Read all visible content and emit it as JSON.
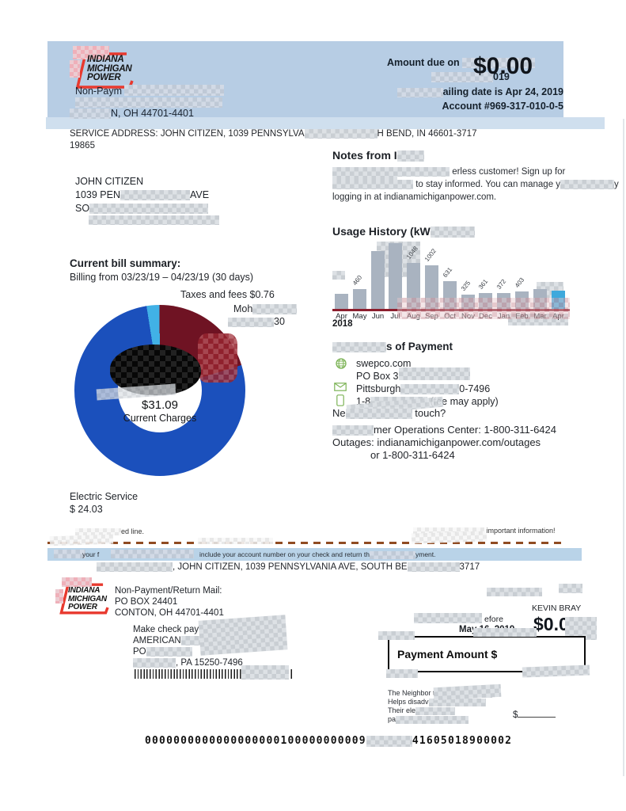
{
  "colors": {
    "header_bg": "#b7cde4",
    "header_strip": "#cfdfee",
    "logo_red": "#e8392e",
    "donut_blue": "#1b50bc",
    "donut_maroon": "#6f1323",
    "donut_lightblue": "#41b1e6",
    "bar_gray": "#a9b3c0",
    "bar_highlight": "#3fa9dc",
    "axis_red": "#8c1f2e",
    "dash_brown": "#8f4b22",
    "strip_blue": "#b9d3e8",
    "icon_green": "#7cb356"
  },
  "logo": {
    "l1": "INDIANA",
    "l2": "MICHIGAN",
    "l3": "POWER"
  },
  "header": {
    "return1": "Non-Paym",
    "return3": "N, OH 44701-4401",
    "amount_due_label": "Amount due on",
    "due_frag": "019",
    "amount": "$0.00",
    "mail_date_frag": "ailing date is Apr 24, 2019",
    "account": "Account #969-317-010-0-5"
  },
  "service": {
    "line1a": "SERVICE ADDRESS: JOHN CITIZEN, 1039 PENNSYLVA",
    "line1b": "H BEND, IN 46601-3717",
    "line2": "19865"
  },
  "customer": {
    "name": "JOHN CITIZEN",
    "street_a": "1039 PEN",
    "street_b": "AVE",
    "city_a": "SO"
  },
  "notes": {
    "title_a": "Notes from I",
    "p1b": "erless customer! Sign up for",
    "p2b": "to stay informed. You can manage y",
    "p2d": "y",
    "p3": "logging in at indianamichiganpower.com."
  },
  "bill_summary": {
    "title": "Current bill summary:",
    "subtitle": "Billing from 03/23/19 – 04/23/19 (30 days)",
    "label_taxes": "Taxes and fees $0.76",
    "label_m_frag": "Moh",
    "label_m2_frag": "30",
    "electric_label": "Electric Service",
    "electric_amount": "$ 24.03"
  },
  "usage": {
    "year": "2018"
  },
  "payment_methods": {
    "title_b": "s of Payment",
    "web": "swepco.com",
    "po": "PO Box 371496",
    "city_a": "Pittsburgh",
    "city_b": "0-7496",
    "phone_a": "1-8",
    "phone_b": "(fee may apply)",
    "touch_a": "Ne",
    "touch_b": "touch?",
    "ops_b": "mer Operations Center: 1-800-311-6424",
    "outages": "Outages: indianamichiganpower.com/outages",
    "outages2": "or 1-800-311-6424"
  },
  "perforation": {
    "left_b": "ed line.",
    "right_b": "important information!",
    "strip_a": "your f",
    "strip_b": "include your account number on your check and return th",
    "strip_c": "yment.",
    "addr_b": ", JOHN CITIZEN, 1039 PENNSYLVANIA AVE, SOUTH BE",
    "addr_c": "3717"
  },
  "stub": {
    "return_title": "Non-Payment/Return Mail:",
    "return_po": "PO BOX 24401",
    "return_city": "CONTON, OH 44701-4401",
    "check_a": "Make check paya",
    "check_b": "AMERICAN",
    "check_b2": "ER",
    "check_c": "PO",
    "check_d": ", PA 15250-7496",
    "agent": "KEVIN BRAY",
    "due_frag": "efore",
    "due_date": "May 16, 2019",
    "amount_frag": "$0.0",
    "box_label": "Payment Amount $",
    "neighbor1": "The Neighbor to N",
    "neighbor2": "Helps disadv",
    "neighbor3": "Their ele",
    "neighbor4": "pa",
    "donation_sign": "$",
    "ocr_a": "0000000000000000000100000000009",
    "ocr_b": "41605018900002"
  },
  "chart_data": [
    {
      "type": "bar",
      "title_visible": "Usage History (kW",
      "title_inferred": "Usage History (kWh)",
      "categories": [
        "Apr",
        "May",
        "Jun",
        "Jul",
        "Aug",
        "Sep",
        "Oct",
        "Nov",
        "Dec",
        "Jan",
        "Feb",
        "Mar",
        "Apr"
      ],
      "year_label": "2018",
      "values": [
        340,
        460,
        1320,
        1500,
        1048,
        1002,
        631,
        325,
        361,
        372,
        403,
        460,
        420
      ],
      "value_labels": [
        "",
        "460",
        "",
        "",
        "1048",
        "1002",
        "631",
        "325",
        "361",
        "372",
        "403",
        "",
        ""
      ],
      "ylim": [
        0,
        1600
      ],
      "bar_color": "#a9b3c0",
      "highlight_index": 12,
      "highlight_color": "#3fa9dc",
      "baseline_color": "#8c1f2e",
      "legend": "last bar highlighted = current period"
    },
    {
      "type": "pie",
      "subtype": "donut",
      "start_angle_deg": -9,
      "total": 31.09,
      "center_value": "$31.09",
      "center_label": "Current Charges",
      "slices": [
        {
          "label": "Taxes and fees $0.76",
          "value": 0.76,
          "color": "#41b1e6"
        },
        {
          "label_visible_fragments": [
            "Moh",
            "30"
          ],
          "value": 6.3,
          "color": "#6f1323"
        },
        {
          "label": "Electric Service $ 24.03",
          "value": 24.03,
          "color": "#1b50bc"
        }
      ]
    }
  ]
}
